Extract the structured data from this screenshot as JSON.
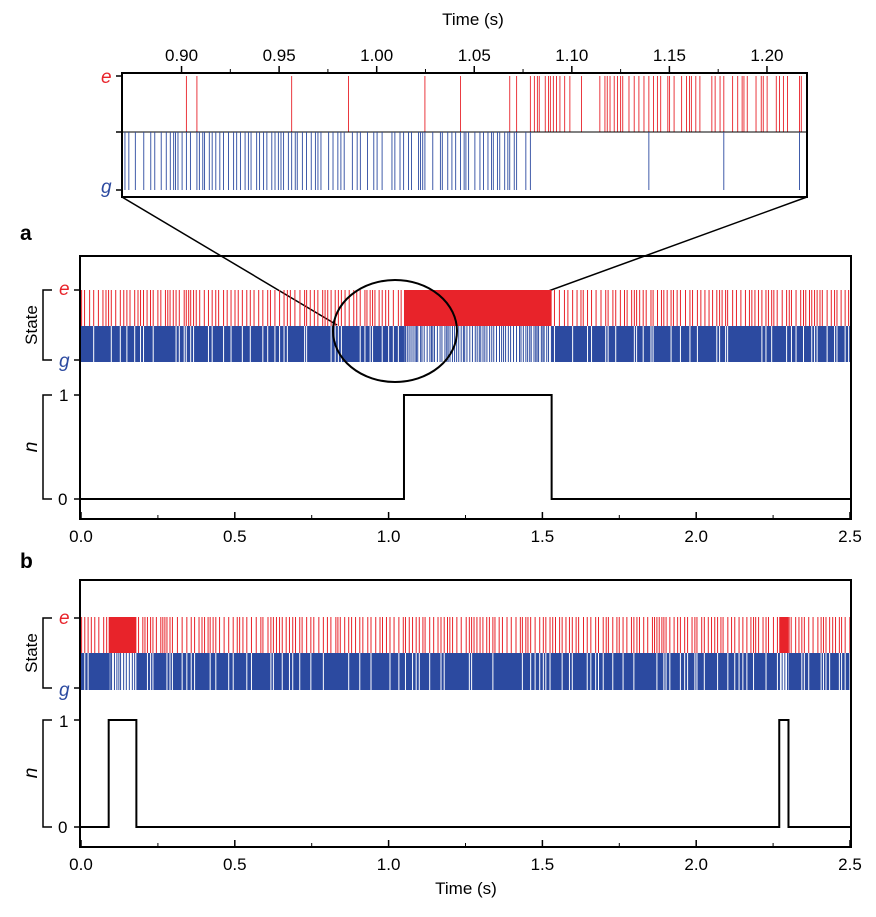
{
  "colors": {
    "e_state": "#e8232a",
    "g_state": "#2c4aa0",
    "n_trace": "#000000",
    "frame": "#000000"
  },
  "labels": {
    "inset_xlabel": "Time (s)",
    "bottom_xlabel": "Time (s)",
    "state_axis": "State",
    "n_axis": "n",
    "e": "e",
    "g": "g",
    "panel_a": "a",
    "panel_b": "b",
    "bracket_tick_one": "1",
    "bracket_tick_zero": "0"
  },
  "chart_data": [
    {
      "id": "inset",
      "type": "line",
      "description_role": "zoomed quantum-jump trace",
      "xlabel": "Time (s)",
      "x_ticks": [
        "0.90",
        "0.95",
        "1.00",
        "1.05",
        "1.10",
        "1.15",
        "1.20"
      ],
      "x_tick_values": [
        0.9,
        0.95,
        1.0,
        1.05,
        1.1,
        1.15,
        1.2
      ],
      "xlim": [
        0.87,
        1.22
      ],
      "axis_position": "top",
      "y_categories": [
        "e",
        "g"
      ],
      "series": [
        {
          "name": "e",
          "state": "e",
          "color": "#e8232a"
        },
        {
          "name": "g",
          "state": "g",
          "color": "#2c4aa0"
        }
      ],
      "dense_e_interval": [
        1.072,
        1.22
      ]
    },
    {
      "id": "a",
      "type": "line",
      "xlim": [
        0.0,
        2.5
      ],
      "x_ticks": [
        "0.0",
        "0.5",
        "1.0",
        "1.5",
        "2.0",
        "2.5"
      ],
      "x_tick_values": [
        0.0,
        0.5,
        1.0,
        1.5,
        2.0,
        2.5
      ],
      "state_ylabel": "State",
      "n_ylabel": "n",
      "n_ticks": [
        "0",
        "1"
      ],
      "series": [
        {
          "name": "e",
          "color": "#e8232a"
        },
        {
          "name": "g",
          "color": "#2c4aa0"
        },
        {
          "name": "n",
          "color": "#000000",
          "x": [
            0.0,
            1.05,
            1.05,
            1.53,
            1.53,
            2.5
          ],
          "y": [
            0,
            0,
            1,
            1,
            0,
            0
          ]
        }
      ],
      "e_blocks": [
        [
          1.05,
          1.53
        ]
      ],
      "zoom_region": [
        0.87,
        1.22
      ]
    },
    {
      "id": "b",
      "type": "line",
      "xlim": [
        0.0,
        2.5
      ],
      "x_ticks": [
        "0.0",
        "0.5",
        "1.0",
        "1.5",
        "2.0",
        "2.5"
      ],
      "x_tick_values": [
        0.0,
        0.5,
        1.0,
        1.5,
        2.0,
        2.5
      ],
      "xlabel": "Time (s)",
      "state_ylabel": "State",
      "n_ylabel": "n",
      "n_ticks": [
        "0",
        "1"
      ],
      "series": [
        {
          "name": "e",
          "color": "#e8232a"
        },
        {
          "name": "g",
          "color": "#2c4aa0"
        },
        {
          "name": "n",
          "color": "#000000",
          "x": [
            0.0,
            0.09,
            0.09,
            0.18,
            0.18,
            2.27,
            2.27,
            2.3,
            2.3,
            2.5
          ],
          "y": [
            0,
            0,
            1,
            1,
            0,
            0,
            1,
            1,
            0,
            0
          ]
        }
      ],
      "e_blocks": [
        [
          0.09,
          0.18
        ],
        [
          2.27,
          2.3
        ]
      ]
    }
  ]
}
